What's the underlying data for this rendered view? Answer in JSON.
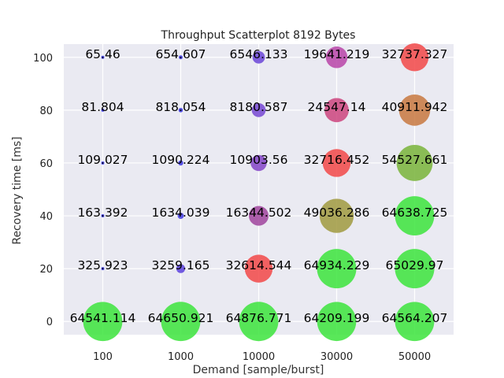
{
  "chart_data": {
    "type": "scatter",
    "title": "Throughput Scatterplot 8192 Bytes",
    "xlabel": "Demand [sample/burst]",
    "ylabel": "Recovery time [ms]",
    "x_categories": [
      "100",
      "1000",
      "10000",
      "30000",
      "50000"
    ],
    "y_ticks": [
      0,
      20,
      40,
      60,
      80,
      100
    ],
    "ylim": [
      -5,
      105
    ],
    "grid": true,
    "background_color": "#eaeaf2",
    "color_scale": "size-mapped from blue/purple (low throughput) through red, orange, olive to green (high throughput)",
    "points": [
      {
        "x": "100",
        "y": 100,
        "value": "65.46",
        "color": "#3333ee"
      },
      {
        "x": "1000",
        "y": 100,
        "value": "654.607",
        "color": "#3a36e6"
      },
      {
        "x": "10000",
        "y": 100,
        "value": "6546.133",
        "color": "#6b45d8"
      },
      {
        "x": "30000",
        "y": 100,
        "value": "19641.219",
        "color": "#b844a8"
      },
      {
        "x": "50000",
        "y": 100,
        "value": "32737.327",
        "color": "#f24848"
      },
      {
        "x": "100",
        "y": 80,
        "value": "81.804",
        "color": "#3333ee"
      },
      {
        "x": "1000",
        "y": 80,
        "value": "818.054",
        "color": "#3a36e6"
      },
      {
        "x": "10000",
        "y": 80,
        "value": "8180.587",
        "color": "#7547d2"
      },
      {
        "x": "30000",
        "y": 80,
        "value": "24547.14",
        "color": "#cc447e"
      },
      {
        "x": "50000",
        "y": 80,
        "value": "40911.942",
        "color": "#c8783f"
      },
      {
        "x": "100",
        "y": 60,
        "value": "109.027",
        "color": "#3333ee"
      },
      {
        "x": "1000",
        "y": 60,
        "value": "1090.224",
        "color": "#3d37e4"
      },
      {
        "x": "10000",
        "y": 60,
        "value": "10903.56",
        "color": "#8444c8"
      },
      {
        "x": "30000",
        "y": 60,
        "value": "32716.452",
        "color": "#f24848"
      },
      {
        "x": "50000",
        "y": 60,
        "value": "54527.661",
        "color": "#79b43a"
      },
      {
        "x": "100",
        "y": 40,
        "value": "163.392",
        "color": "#3333ee"
      },
      {
        "x": "1000",
        "y": 40,
        "value": "1634.039",
        "color": "#4038e0"
      },
      {
        "x": "10000",
        "y": 40,
        "value": "16344.502",
        "color": "#a0449e"
      },
      {
        "x": "30000",
        "y": 40,
        "value": "49036.286",
        "color": "#a09a40"
      },
      {
        "x": "50000",
        "y": 40,
        "value": "64638.725",
        "color": "#3ce43c"
      },
      {
        "x": "100",
        "y": 20,
        "value": "325.923",
        "color": "#3333ee"
      },
      {
        "x": "1000",
        "y": 20,
        "value": "3259.165",
        "color": "#5a3fdc"
      },
      {
        "x": "10000",
        "y": 20,
        "value": "32614.544",
        "color": "#f24848"
      },
      {
        "x": "30000",
        "y": 20,
        "value": "64934.229",
        "color": "#3ce43c"
      },
      {
        "x": "50000",
        "y": 20,
        "value": "65029.97",
        "color": "#3ce43c"
      },
      {
        "x": "100",
        "y": 0,
        "value": "64541.114",
        "color": "#3ce43c"
      },
      {
        "x": "1000",
        "y": 0,
        "value": "64650.921",
        "color": "#3ce43c"
      },
      {
        "x": "10000",
        "y": 0,
        "value": "64876.771",
        "color": "#3ce43c"
      },
      {
        "x": "30000",
        "y": 0,
        "value": "64209.199",
        "color": "#3ce43c"
      },
      {
        "x": "50000",
        "y": 0,
        "value": "64564.207",
        "color": "#3ce43c"
      }
    ]
  }
}
